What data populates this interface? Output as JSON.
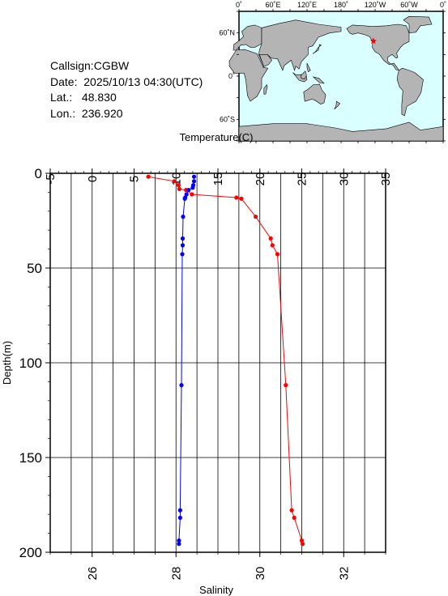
{
  "station": {
    "callsign_label": "Callsign:",
    "callsign": "CGBW",
    "date_label": "Date:",
    "date": "2025/10/13 04:30(UTC)",
    "lat_label": "Lat.:",
    "lat": "48.830",
    "lon_label": "Lon.:",
    "lon": "236.920"
  },
  "map": {
    "top_labels": [
      "0˚",
      "60˚E",
      "120˚E",
      "180˚",
      "120˚W",
      "60˚W",
      "0˚"
    ],
    "side_labels": [
      "60˚N",
      "0˚",
      "60˚S"
    ],
    "ocean_color": "#d9ffff",
    "land_color": "#b4b4b4",
    "marker": "star-icon",
    "marker_color": "#ff0000"
  },
  "chart_data": {
    "type": "line",
    "ylabel": "Depth(m)",
    "ylim": [
      200,
      0
    ],
    "yticks": [
      0,
      50,
      100,
      150,
      200
    ],
    "grid": true,
    "top_axis": {
      "label": "Temperature(C)",
      "lim": [
        -5,
        35
      ],
      "ticks": [
        -5,
        0,
        5,
        10,
        15,
        20,
        25,
        30,
        35
      ]
    },
    "bottom_axis": {
      "label": "Salinity",
      "lim": [
        25,
        33
      ],
      "ticks": [
        26,
        28,
        30,
        32
      ]
    },
    "series": [
      {
        "variable": "temperature",
        "axis": "top",
        "color": "#ff0000",
        "points": [
          [
            6.7,
            1.8
          ],
          [
            9.8,
            4.2
          ],
          [
            10.3,
            6.3
          ],
          [
            10.4,
            8.3
          ],
          [
            11.2,
            8.8
          ],
          [
            11.9,
            11.1
          ],
          [
            17.2,
            12.8
          ],
          [
            17.8,
            13.4
          ],
          [
            19.5,
            22.9
          ],
          [
            21.3,
            34.4
          ],
          [
            21.5,
            38.0
          ],
          [
            22.1,
            42.7
          ],
          [
            23.1,
            111.8
          ],
          [
            23.8,
            177.8
          ],
          [
            24.1,
            181.8
          ],
          [
            25.0,
            193.8
          ],
          [
            25.1,
            195.6
          ]
        ]
      },
      {
        "variable": "salinity",
        "axis": "bottom",
        "color": "#0000ff",
        "points": [
          [
            28.43,
            1.8
          ],
          [
            28.43,
            4.2
          ],
          [
            28.41,
            6.3
          ],
          [
            28.4,
            7.6
          ],
          [
            28.3,
            8.8
          ],
          [
            28.25,
            11.1
          ],
          [
            28.22,
            12.8
          ],
          [
            28.21,
            13.4
          ],
          [
            28.17,
            22.9
          ],
          [
            28.16,
            34.4
          ],
          [
            28.16,
            38.0
          ],
          [
            28.15,
            42.7
          ],
          [
            28.13,
            111.8
          ],
          [
            28.1,
            177.8
          ],
          [
            28.1,
            181.8
          ],
          [
            28.07,
            193.8
          ],
          [
            28.07,
            195.6
          ]
        ]
      }
    ]
  }
}
